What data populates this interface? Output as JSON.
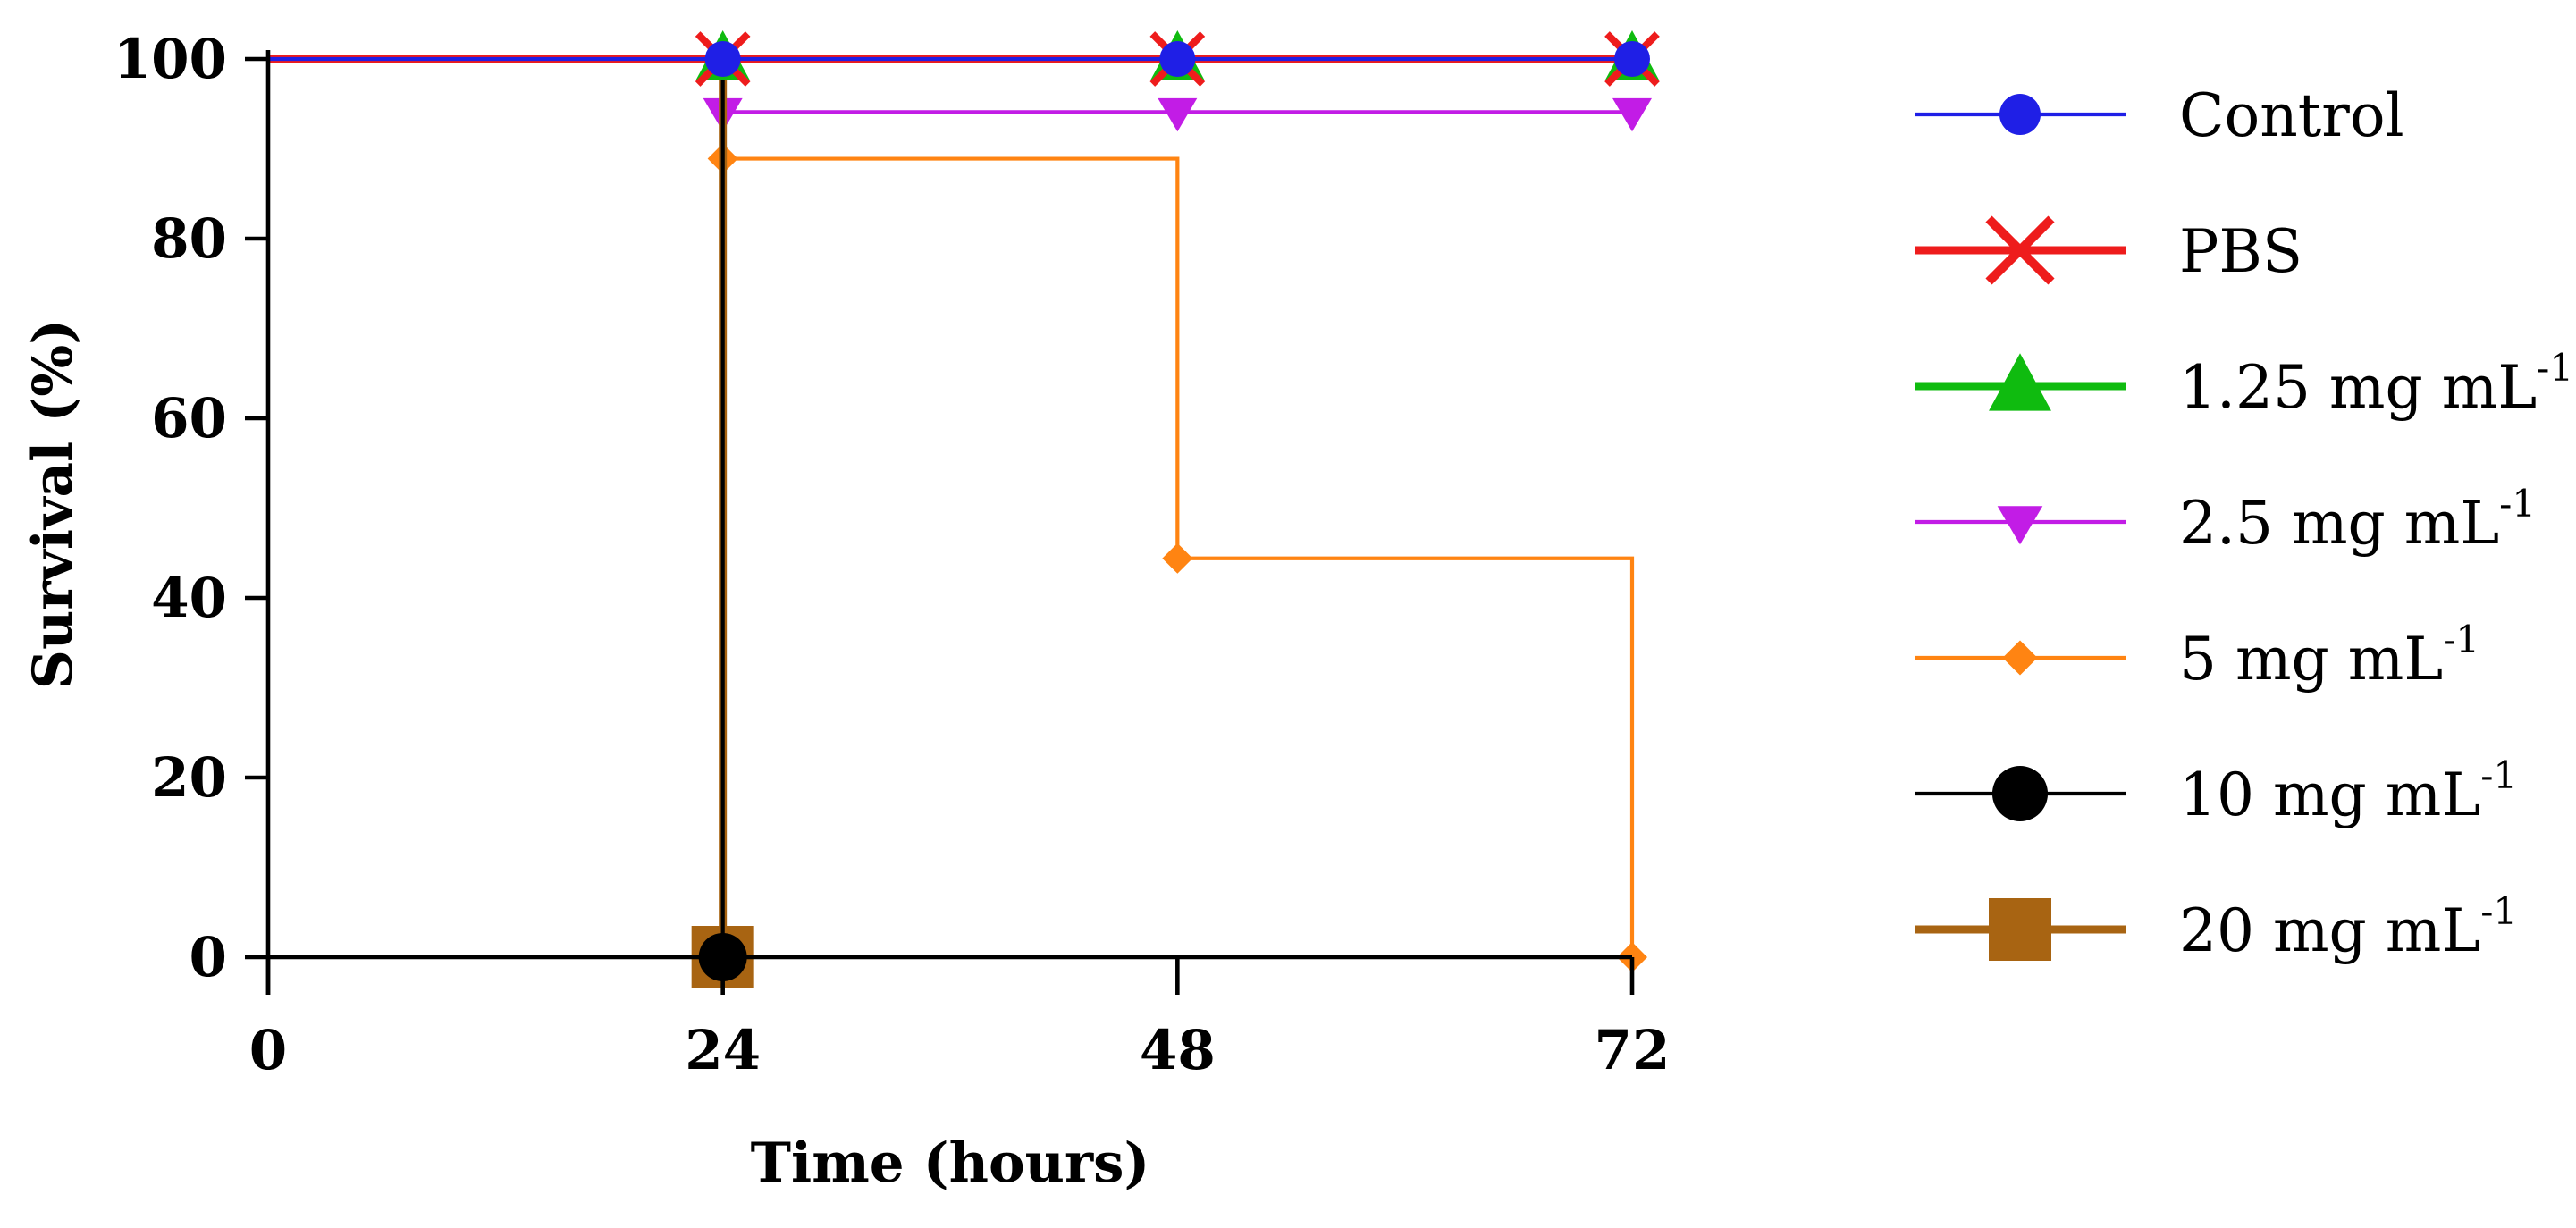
{
  "chart_data": {
    "type": "line",
    "step": true,
    "xlabel": "Time (hours)",
    "ylabel": "Survival (%)",
    "xlim": [
      0,
      72
    ],
    "ylim": [
      0,
      100
    ],
    "xticks": [
      "0",
      "24",
      "48",
      "72"
    ],
    "yticks": [
      "0",
      "20",
      "40",
      "60",
      "80",
      "100"
    ],
    "legend_placement": "right",
    "series": [
      {
        "name": "Control",
        "sup": "",
        "color": "#1f1fe6",
        "marker": "circle",
        "line_weight": "thin",
        "x": [
          0,
          24,
          48,
          72
        ],
        "y": [
          100,
          100,
          100,
          100
        ],
        "markers_at": [
          24,
          48,
          72
        ]
      },
      {
        "name": "PBS",
        "sup": "",
        "color": "#ee1c1c",
        "marker": "x",
        "line_weight": "thick",
        "x": [
          0,
          24,
          48,
          72
        ],
        "y": [
          100,
          100,
          100,
          100
        ],
        "markers_at": [
          24,
          48,
          72
        ]
      },
      {
        "name": "1.25 mg mL",
        "sup": "-1",
        "color": "#0fbb0f",
        "marker": "triangle-up",
        "line_weight": "thick",
        "x": [
          0,
          24,
          48,
          72
        ],
        "y": [
          100,
          100,
          100,
          100
        ],
        "markers_at": [
          24,
          48,
          72
        ]
      },
      {
        "name": "2.5 mg mL",
        "sup": "-1",
        "color": "#c21ce6",
        "marker": "triangle-down",
        "line_weight": "thin",
        "x": [
          0,
          24,
          48,
          72
        ],
        "y": [
          100,
          94.1,
          94.1,
          94.1
        ],
        "markers_at": [
          24,
          48,
          72
        ]
      },
      {
        "name": "5 mg mL",
        "sup": "-1",
        "color": "#ff8412",
        "marker": "diamond",
        "line_weight": "thin",
        "x": [
          0,
          24,
          48,
          72
        ],
        "y": [
          100,
          88.9,
          44.4,
          0
        ],
        "markers_at": [
          24,
          48,
          72
        ]
      },
      {
        "name": "10 mg mL",
        "sup": "-1",
        "color": "#000000",
        "marker": "circle-large",
        "line_weight": "thin",
        "x": [
          0,
          24
        ],
        "y": [
          100,
          0
        ],
        "markers_at": [
          24
        ]
      },
      {
        "name": "20 mg mL",
        "sup": "-1",
        "color": "#a86412",
        "marker": "square",
        "line_weight": "thick",
        "x": [
          0,
          24
        ],
        "y": [
          100,
          0
        ],
        "markers_at": [
          24
        ]
      }
    ]
  }
}
